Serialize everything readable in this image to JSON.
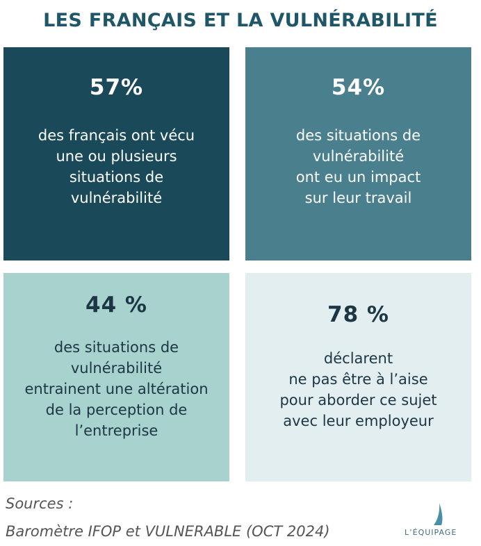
{
  "header": {
    "title": "LES FRANÇAIS ET LA VULNÉRABILITÉ"
  },
  "cards": [
    {
      "stat": "57%",
      "lines": [
        "des français ont vécu",
        "une ou plusieurs",
        "situations de",
        "vulnérabilité"
      ]
    },
    {
      "stat": "54%",
      "lines": [
        "des situations de",
        "vulnérabilité",
        "ont eu un impact",
        "sur leur travail"
      ]
    },
    {
      "stat": "44 %",
      "lines": [
        "des situations de",
        "vulnérabilité",
        "entrainent une altération",
        "de la perception de",
        "l’entreprise"
      ]
    },
    {
      "stat": "78 %",
      "lines": [
        "déclarent",
        "ne pas être à l’aise",
        "pour aborder ce sujet",
        "avec leur employeur"
      ]
    }
  ],
  "footer": {
    "sources_label": "Sources :",
    "source": "Baromètre IFOP et VULNERABLE (OCT 2024)",
    "logo": "L’ÉQUIPAGE"
  }
}
